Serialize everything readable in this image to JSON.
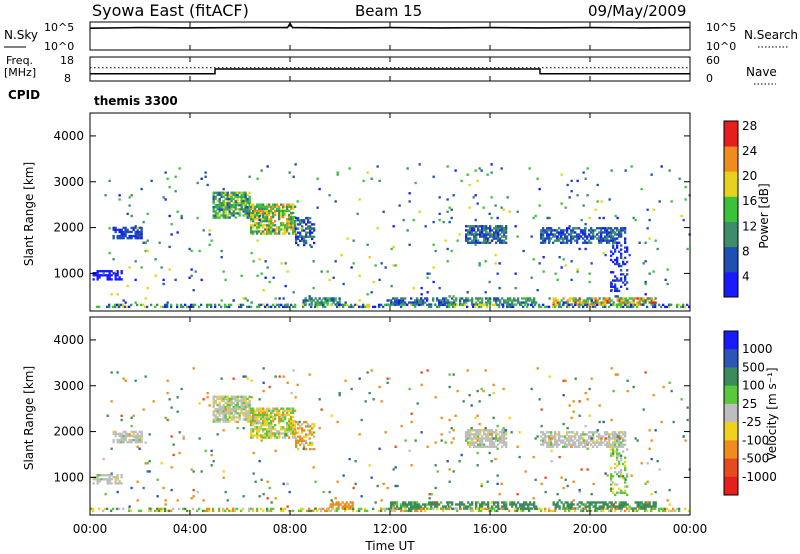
{
  "header": {
    "station": "Syowa East (fitACF)",
    "beam": "Beam 15",
    "date": "09/May/2009"
  },
  "nsky_panel": {
    "left_label": "N.Sky",
    "right_label": "N.Search",
    "left_ticks": [
      "10^5",
      "10^0"
    ],
    "right_ticks": [
      "10^5",
      "10^0"
    ]
  },
  "freq_panel": {
    "left_label_1": "Freq.",
    "left_label_2": "[MHz]",
    "right_label": "Nave",
    "left_ticks": [
      "18",
      "8"
    ],
    "right_ticks": [
      "60",
      "0"
    ],
    "cpid_label": "CPID",
    "cpid_value": "themis 3300"
  },
  "x_axis": {
    "label": "Time UT",
    "ticks": [
      "00:00",
      "04:00",
      "08:00",
      "12:00",
      "16:00",
      "20:00",
      "00:00"
    ],
    "range_hours": [
      0,
      24
    ]
  },
  "power_colorbar": {
    "label": "Power [dB]",
    "ticks": [
      "4",
      "8",
      "12",
      "16",
      "20",
      "24",
      "28"
    ],
    "colors": [
      "#1a1aff",
      "#1e4fb4",
      "#3d8c6a",
      "#3bc23b",
      "#e6d21e",
      "#f08c1e",
      "#e61e1e"
    ]
  },
  "velocity_colorbar": {
    "label": "Velocity  [m s⁻¹]",
    "ticks": [
      "1000",
      "500",
      "100",
      "25",
      "-25",
      "-100",
      "-500",
      "-1000"
    ],
    "colors": [
      "#1a1aff",
      "#2b56b8",
      "#3c8c5a",
      "#5ac83a",
      "#bebebe",
      "#f0d21e",
      "#f08c1e",
      "#e64a1e",
      "#e61e1e"
    ]
  },
  "chart_data": [
    {
      "type": "line",
      "title": "N.Sky / N.Search",
      "x_range_hours": [
        0,
        24
      ],
      "series": [
        {
          "x": [
            0,
            2,
            4,
            6,
            7.9,
            8,
            8.1,
            10,
            12,
            14,
            16,
            18,
            20,
            22,
            24
          ],
          "y_norm": [
            0.78,
            0.8,
            0.79,
            0.8,
            0.8,
            0.95,
            0.8,
            0.79,
            0.8,
            0.79,
            0.8,
            0.79,
            0.8,
            0.79,
            0.8
          ]
        }
      ]
    },
    {
      "type": "line",
      "title": "Freq / Nave",
      "x_range_hours": [
        0,
        24
      ],
      "series": [
        {
          "x": [
            0,
            5,
            5,
            18,
            18,
            24
          ],
          "y": [
            11,
            11,
            13,
            13,
            11,
            11
          ]
        },
        {
          "x": [
            0,
            24
          ],
          "y": [
            13.5,
            13.5
          ]
        }
      ]
    },
    {
      "type": "heatmap",
      "title": "Power",
      "ylabel": "Slant Range [km]",
      "yticks": [
        1000,
        2000,
        3000,
        4000
      ],
      "ylim": [
        180,
        4500
      ],
      "xlim": [
        0,
        24
      ],
      "regions": [
        {
          "t": [
            0.1,
            1.3
          ],
          "r": [
            850,
            1050
          ],
          "v": [
            4,
            6
          ],
          "d": 0.55
        },
        {
          "t": [
            0.9,
            2.1
          ],
          "r": [
            1750,
            2000
          ],
          "v": [
            4,
            10
          ],
          "d": 0.65
        },
        {
          "t": [
            4.9,
            6.4
          ],
          "r": [
            2200,
            2750
          ],
          "v": [
            8,
            20
          ],
          "d": 0.75
        },
        {
          "t": [
            6.4,
            8.2
          ],
          "r": [
            1850,
            2500
          ],
          "v": [
            10,
            24
          ],
          "d": 0.75
        },
        {
          "t": [
            8.2,
            9.0
          ],
          "r": [
            1600,
            2200
          ],
          "v": [
            4,
            14
          ],
          "d": 0.55
        },
        {
          "t": [
            8.5,
            10.0
          ],
          "r": [
            300,
            450
          ],
          "v": [
            6,
            18
          ],
          "d": 0.7
        },
        {
          "t": [
            12.0,
            14.4
          ],
          "r": [
            300,
            450
          ],
          "v": [
            4,
            14
          ],
          "d": 0.65
        },
        {
          "t": [
            15.0,
            16.6
          ],
          "r": [
            1650,
            2050
          ],
          "v": [
            4,
            14
          ],
          "d": 0.75
        },
        {
          "t": [
            14.2,
            17.8
          ],
          "r": [
            300,
            450
          ],
          "v": [
            8,
            16
          ],
          "d": 0.6
        },
        {
          "t": [
            18.0,
            21.4
          ],
          "r": [
            1650,
            2000
          ],
          "v": [
            4,
            12
          ],
          "d": 0.65
        },
        {
          "t": [
            18.5,
            22.6
          ],
          "r": [
            300,
            450
          ],
          "v": [
            10,
            28
          ],
          "d": 0.75
        },
        {
          "t": [
            20.8,
            21.5
          ],
          "r": [
            600,
            1600
          ],
          "v": [
            4,
            8
          ],
          "d": 0.4
        },
        {
          "t": [
            0,
            24
          ],
          "r": [
            250,
            320
          ],
          "v": [
            4,
            20
          ],
          "d": 0.45
        },
        {
          "t": [
            0.5,
            24
          ],
          "r": [
            300,
            3400
          ],
          "v": [
            4,
            20
          ],
          "d": 0.02
        }
      ]
    },
    {
      "type": "heatmap",
      "title": "Velocity",
      "ylabel": "Slant Range [km]",
      "yticks": [
        1000,
        2000,
        3000,
        4000
      ],
      "ylim": [
        180,
        4500
      ],
      "xlim": [
        0,
        24
      ],
      "regions": [
        {
          "t": [
            0.1,
            1.3
          ],
          "r": [
            850,
            1050
          ],
          "v": [
            -30,
            30
          ],
          "d": 0.55
        },
        {
          "t": [
            0.9,
            2.1
          ],
          "r": [
            1750,
            2000
          ],
          "v": [
            -30,
            30
          ],
          "d": 0.65
        },
        {
          "t": [
            4.9,
            6.4
          ],
          "r": [
            2200,
            2750
          ],
          "v": [
            -40,
            40
          ],
          "d": 0.75
        },
        {
          "t": [
            6.4,
            8.2
          ],
          "r": [
            1850,
            2500
          ],
          "v": [
            -120,
            80
          ],
          "d": 0.75
        },
        {
          "t": [
            8.2,
            9.0
          ],
          "r": [
            1600,
            2200
          ],
          "v": [
            -200,
            50
          ],
          "d": 0.5
        },
        {
          "t": [
            9.5,
            10.5
          ],
          "r": [
            300,
            450
          ],
          "v": [
            -200,
            -100
          ],
          "d": 0.7
        },
        {
          "t": [
            12.0,
            14.4
          ],
          "r": [
            300,
            450
          ],
          "v": [
            50,
            300
          ],
          "d": 0.65
        },
        {
          "t": [
            15.0,
            16.6
          ],
          "r": [
            1650,
            2050
          ],
          "v": [
            -30,
            30
          ],
          "d": 0.75
        },
        {
          "t": [
            14.2,
            17.8
          ],
          "r": [
            300,
            450
          ],
          "v": [
            50,
            400
          ],
          "d": 0.6
        },
        {
          "t": [
            18.0,
            21.4
          ],
          "r": [
            1650,
            2000
          ],
          "v": [
            -30,
            30
          ],
          "d": 0.65
        },
        {
          "t": [
            18.5,
            22.6
          ],
          "r": [
            300,
            450
          ],
          "v": [
            80,
            400
          ],
          "d": 0.7
        },
        {
          "t": [
            20.8,
            21.5
          ],
          "r": [
            600,
            1600
          ],
          "v": [
            -60,
            120
          ],
          "d": 0.4
        },
        {
          "t": [
            0,
            24
          ],
          "r": [
            250,
            320
          ],
          "v": [
            -150,
            150
          ],
          "d": 0.45
        },
        {
          "t": [
            0.5,
            24
          ],
          "r": [
            300,
            3400
          ],
          "v": [
            -600,
            600
          ],
          "d": 0.02
        }
      ]
    }
  ]
}
